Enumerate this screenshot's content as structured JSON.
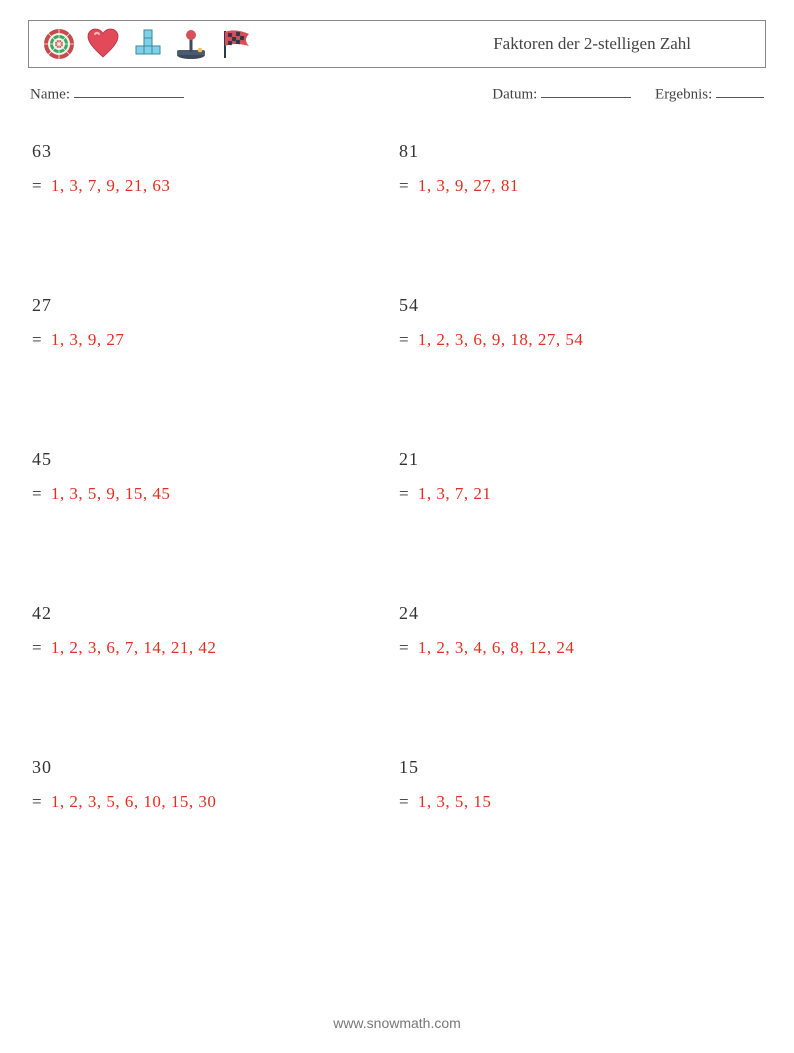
{
  "header": {
    "title": "Faktoren der 2-stelligen Zahl"
  },
  "meta": {
    "name_label": "Name:",
    "date_label": "Datum:",
    "score_label": "Ergebnis:"
  },
  "icons": {
    "dart_colors": {
      "outer": "#c74b4b",
      "mid": "#3aa862",
      "inner": "#c74b4b",
      "bull": "#f6d96b"
    },
    "heart_color": "#e24a5a",
    "tetris_colors": [
      "#7fd1e8",
      "#7fd1e8",
      "#7fd1e8",
      "#7fd1e8",
      "#7fd1e8"
    ],
    "joystick_colors": {
      "base": "#3d4a5c",
      "stick": "#3d4a5c",
      "ball": "#d94f58",
      "button": "#f3c35a"
    },
    "flag_colors": {
      "flag": "#d94f58",
      "checks": "#2b3a4a",
      "pole": "#2b3a4a"
    }
  },
  "answer_color": "#e03020",
  "text_color": "#333333",
  "problems": [
    {
      "n": "63",
      "factors": "1, 3, 7, 9, 21, 63"
    },
    {
      "n": "81",
      "factors": "1, 3, 9, 27, 81"
    },
    {
      "n": "27",
      "factors": "1, 3, 9, 27"
    },
    {
      "n": "54",
      "factors": "1, 2, 3, 6, 9, 18, 27, 54"
    },
    {
      "n": "45",
      "factors": "1, 3, 5, 9, 15, 45"
    },
    {
      "n": "21",
      "factors": "1, 3, 7, 21"
    },
    {
      "n": "42",
      "factors": "1, 2, 3, 6, 7, 14, 21, 42"
    },
    {
      "n": "24",
      "factors": "1, 2, 3, 4, 6, 8, 12, 24"
    },
    {
      "n": "30",
      "factors": "1, 2, 3, 5, 6, 10, 15, 30"
    },
    {
      "n": "15",
      "factors": "1, 3, 5, 15"
    }
  ],
  "footer": {
    "text": "www.snowmath.com"
  }
}
